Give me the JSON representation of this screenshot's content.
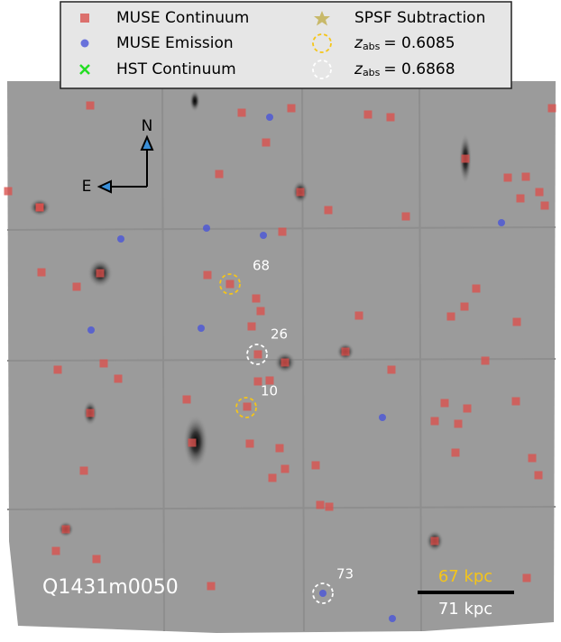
{
  "legend": {
    "items": [
      "MUSE Continuum",
      "MUSE Emission",
      "HST Continuum",
      "SPSF Subtraction"
    ],
    "z_items": [
      {
        "var": "z",
        "sub": "abs",
        "value": "= 0.6085"
      },
      {
        "var": "z",
        "sub": "abs",
        "value": "= 0.6868"
      }
    ]
  },
  "compass": {
    "north": "N",
    "east": "E"
  },
  "labels": [
    "68",
    "26",
    "10",
    "73"
  ],
  "field": "Q1431m0050",
  "scale": {
    "top": "67 kpc",
    "bottom": "71 kpc"
  }
}
